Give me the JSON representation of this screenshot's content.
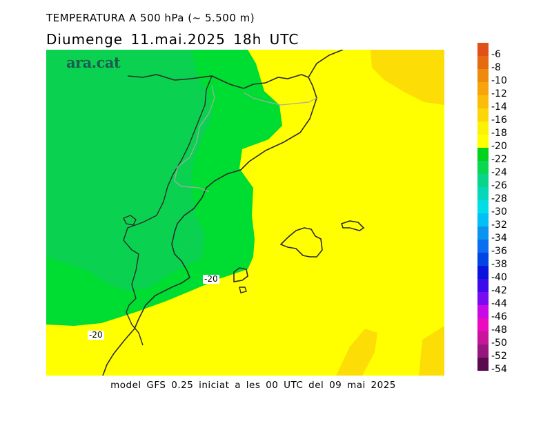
{
  "title": "TEMPERATURA A 500 hPa (~ 5.500 m)",
  "subtitle": "Diumenge  11.mai.2025  18h  UTC",
  "footer": "model GFS 0.25 iniciat a les 00 UTC del 09 mai 2025",
  "logo": "ara.cat",
  "contour_labels": [
    "-20",
    "-20"
  ],
  "legend": {
    "labels": [
      "-6",
      "-8",
      "-10",
      "-12",
      "-14",
      "-16",
      "-18",
      "-20",
      "-22",
      "-24",
      "-26",
      "-28",
      "-30",
      "-32",
      "-34",
      "-36",
      "-38",
      "-40",
      "-42",
      "-44",
      "-46",
      "-48",
      "-50",
      "-52",
      "-54"
    ],
    "colors": [
      "#e2501a",
      "#e66a12",
      "#ef8a0c",
      "#f6a409",
      "#fbbd07",
      "#fcd606",
      "#fbf205",
      "#ffff00",
      "#00d21e",
      "#0ad750",
      "#09d48c",
      "#05d7b9",
      "#00dde6",
      "#00c0f5",
      "#0a94f0",
      "#0a6ef0",
      "#0044e6",
      "#0a14dc",
      "#3c0aeb",
      "#7a0af0",
      "#c80ae6",
      "#eb0abe",
      "#c8149b",
      "#96167e",
      "#5a0a4e"
    ]
  },
  "colors": {
    "yellow": "#ffff00",
    "yellow_warm": "#fcde06",
    "green": "#00dd32",
    "green_dark": "#0ad250",
    "coast": "#2a2a2a",
    "border": "#a9a9a9"
  }
}
